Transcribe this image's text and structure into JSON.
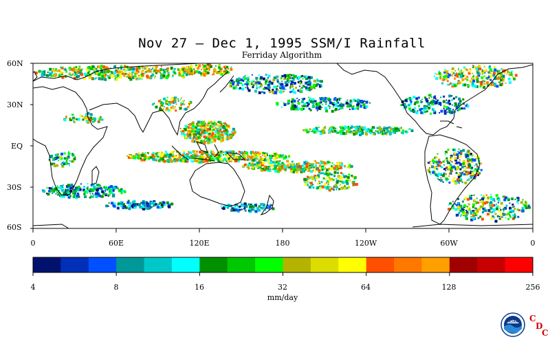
{
  "title": "Nov 27 – Dec 1, 1995 SSM/I Rainfall",
  "subtitle": "Ferriday Algorithm",
  "map": {
    "lat_labels": [
      "60N",
      "30N",
      "EQ",
      "30S",
      "60S"
    ],
    "lon_labels": [
      "0",
      "60E",
      "120E",
      "180",
      "120W",
      "60W",
      "0"
    ]
  },
  "colorbar": {
    "unit": "mm/day",
    "tick_labels": [
      "4",
      "8",
      "16",
      "32",
      "64",
      "128",
      "256"
    ],
    "colors": [
      "#00126e",
      "#0030b8",
      "#0050ff",
      "#009898",
      "#00c8c8",
      "#00ffff",
      "#009000",
      "#00c800",
      "#00ff00",
      "#b4b400",
      "#dcdc00",
      "#ffff00",
      "#ff5000",
      "#ff7800",
      "#ffa000",
      "#a00000",
      "#c80000",
      "#ff0000"
    ]
  },
  "logo": {
    "icon": "noaa-logo-icon",
    "text": "NOAA",
    "credit_letters": [
      "C",
      "D",
      "C"
    ]
  },
  "colors": {
    "ocean": "#ffffff",
    "coast": "#000000"
  }
}
